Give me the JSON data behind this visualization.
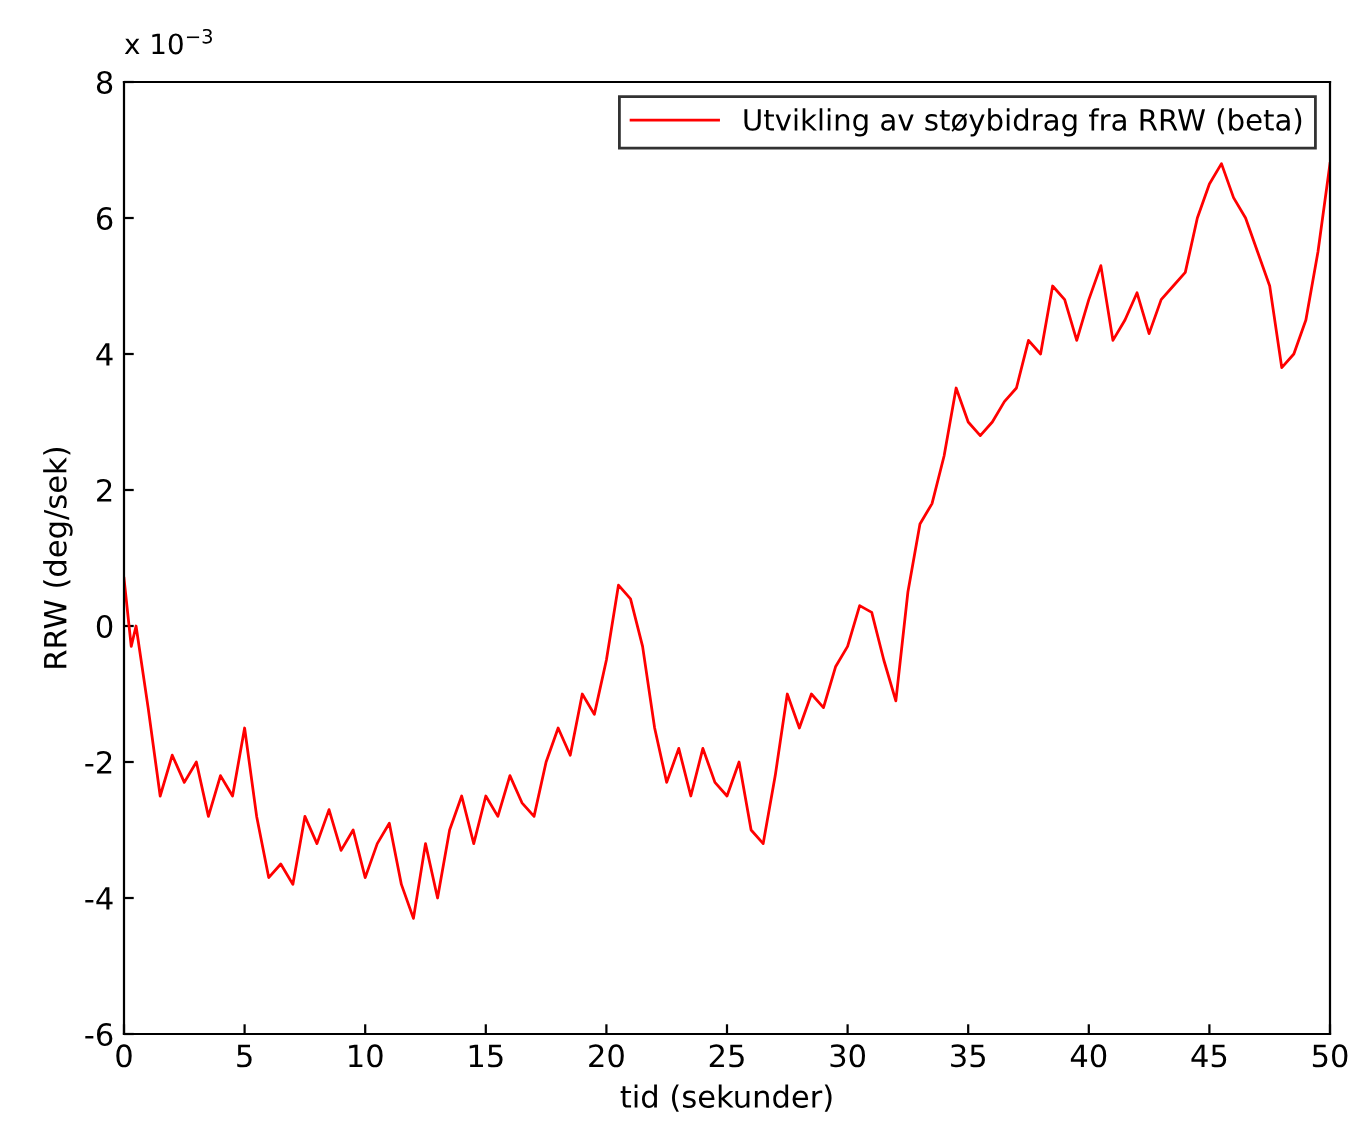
{
  "chart_data": {
    "type": "line",
    "xlabel": "tid (sekunder)",
    "ylabel": "RRW (deg/sek)",
    "annotations": [
      "x 10$^{−3}$"
    ],
    "xlim": [
      0,
      50
    ],
    "xticks": [
      0,
      5,
      10,
      15,
      20,
      25,
      30,
      35,
      40,
      45,
      50
    ],
    "ylim": [
      -6,
      8
    ],
    "yticks": [
      -6,
      -4,
      -2,
      0,
      2,
      4,
      6,
      8
    ],
    "grid": false,
    "legend": "top right",
    "marker": "none",
    "line_style": "solid",
    "x": [
      0,
      0.3,
      0.5,
      1,
      1.5,
      2,
      2.5,
      3,
      3.5,
      4,
      4.5,
      5,
      5.5,
      6,
      6.5,
      7,
      7.5,
      8,
      8.5,
      9,
      9.5,
      10,
      10.5,
      11,
      11.5,
      12,
      12.5,
      13,
      13.5,
      14,
      14.5,
      15,
      15.5,
      16,
      16.5,
      17,
      17.5,
      18,
      18.5,
      19,
      19.5,
      20,
      20.5,
      21,
      21.5,
      22,
      22.5,
      23,
      23.5,
      24,
      24.5,
      25,
      25.5,
      26,
      26.5,
      27,
      27.5,
      28,
      28.5,
      29,
      29.5,
      30,
      30.5,
      31,
      31.5,
      32,
      32.5,
      33,
      33.5,
      34,
      34.5,
      35,
      35.5,
      36,
      36.5,
      37,
      37.5,
      38,
      38.5,
      39,
      39.5,
      40,
      40.5,
      41,
      41.5,
      42,
      42.5,
      43,
      43.5,
      44,
      44.5,
      45,
      45.5,
      46,
      46.5,
      47,
      47.5,
      48,
      48.5,
      49,
      49.5,
      50
    ],
    "series": [
      {
        "name": "Utvikling av støybidrag fra RRW (beta)",
        "color": "#ff0000",
        "values": [
          0.7,
          -0.3,
          0,
          -1.2,
          -2.5,
          -1.9,
          -2.3,
          -2.0,
          -2.8,
          -2.2,
          -2.5,
          -1.5,
          -2.8,
          -3.7,
          -3.5,
          -3.8,
          -2.8,
          -3.2,
          -2.7,
          -3.3,
          -3.0,
          -3.7,
          -3.2,
          -2.9,
          -3.8,
          -4.3,
          -3.2,
          -4.0,
          -3.0,
          -2.5,
          -3.2,
          -2.5,
          -2.8,
          -2.2,
          -2.6,
          -2.8,
          -2.0,
          -1.5,
          -1.9,
          -1.0,
          -1.3,
          -0.5,
          0.6,
          0.4,
          -0.3,
          -1.5,
          -2.3,
          -1.8,
          -2.5,
          -1.8,
          -2.3,
          -2.5,
          -2.0,
          -3.0,
          -3.2,
          -2.2,
          -1.0,
          -1.5,
          -1.0,
          -1.2,
          -0.6,
          -0.3,
          0.3,
          0.2,
          -0.5,
          -1.1,
          0.5,
          1.5,
          1.8,
          2.5,
          3.5,
          3.0,
          2.8,
          3.0,
          3.3,
          3.5,
          4.2,
          4.0,
          5.0,
          4.8,
          4.2,
          4.8,
          5.3,
          4.2,
          4.5,
          4.9,
          4.3,
          4.8,
          5.0,
          5.2,
          6.0,
          6.5,
          6.8,
          6.3,
          6.0,
          5.5,
          5.0,
          3.8,
          4.0,
          4.5,
          5.5,
          6.8
        ]
      }
    ]
  }
}
